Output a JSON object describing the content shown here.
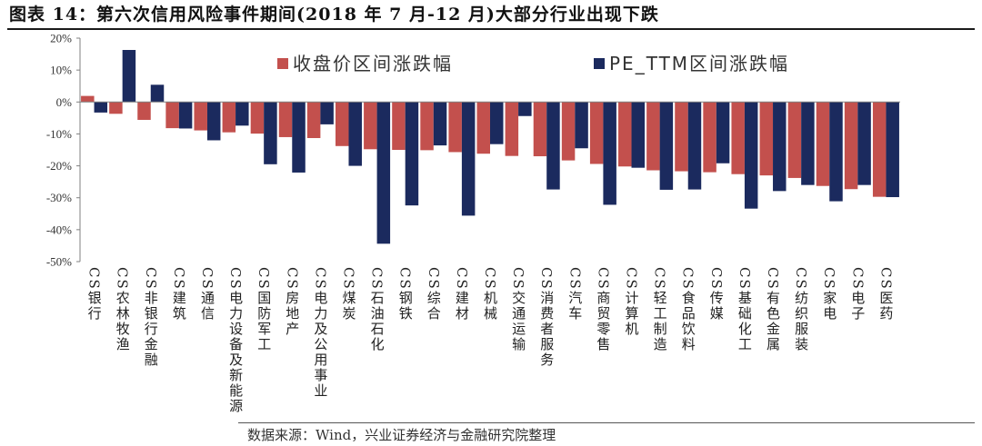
{
  "chart_data": {
    "type": "bar",
    "title": "图表 14：第六次信用风险事件期间(2018 年 7 月-12 月)大部分行业出现下跌",
    "ylim": [
      -50,
      20
    ],
    "yticks": [
      20,
      10,
      0,
      -10,
      -20,
      -30,
      -40,
      -50
    ],
    "ytick_labels": [
      "20%",
      "10%",
      "0%",
      "-10%",
      "-20%",
      "-30%",
      "-40%",
      "-50%"
    ],
    "grid": false,
    "legend": "top",
    "categories": [
      "CS银行",
      "CS农林牧渔",
      "CS非银行金融",
      "CS建筑",
      "CS通信",
      "CS电力设备及新能源",
      "CS国防军工",
      "CS房地产",
      "CS电力及公用事业",
      "CS煤炭",
      "CS石油石化",
      "CS钢铁",
      "CS综合",
      "CS建材",
      "CS机械",
      "CS交通运输",
      "CS消费者服务",
      "CS汽车",
      "CS商贸零售",
      "CS计算机",
      "CS轻工制造",
      "CS食品饮料",
      "CS传媒",
      "CS基础化工",
      "CS有色金属",
      "CS纺织服装",
      "CS家电",
      "CS电子",
      "CS医药"
    ],
    "series": [
      {
        "name": "收盘价区间涨跌幅",
        "color": "#C3504D",
        "values": [
          1.9,
          -3.7,
          -5.6,
          -8.2,
          -8.9,
          -9.5,
          -9.9,
          -11.0,
          -11.3,
          -13.8,
          -14.8,
          -15.0,
          -15.1,
          -15.7,
          -16.2,
          -16.9,
          -17.0,
          -18.3,
          -19.4,
          -20.2,
          -21.4,
          -21.7,
          -22.0,
          -22.6,
          -23.0,
          -23.8,
          -26.3,
          -27.3,
          -29.7
        ]
      },
      {
        "name": "PE_TTM区间涨跌幅",
        "color": "#1B2A5E",
        "values": [
          -3.3,
          16.3,
          5.4,
          -8.3,
          -12.0,
          -7.4,
          -19.5,
          -22.1,
          -7.0,
          -20.0,
          -44.4,
          -32.4,
          -13.6,
          -35.6,
          -13.2,
          -4.4,
          -27.4,
          -14.5,
          -32.2,
          -20.6,
          -27.5,
          -27.4,
          -19.2,
          -33.4,
          -27.9,
          -26.0,
          -31.1,
          -26.0,
          -29.8
        ]
      }
    ]
  },
  "source": "数据来源：Wind，兴业证券经济与金融研究院整理"
}
